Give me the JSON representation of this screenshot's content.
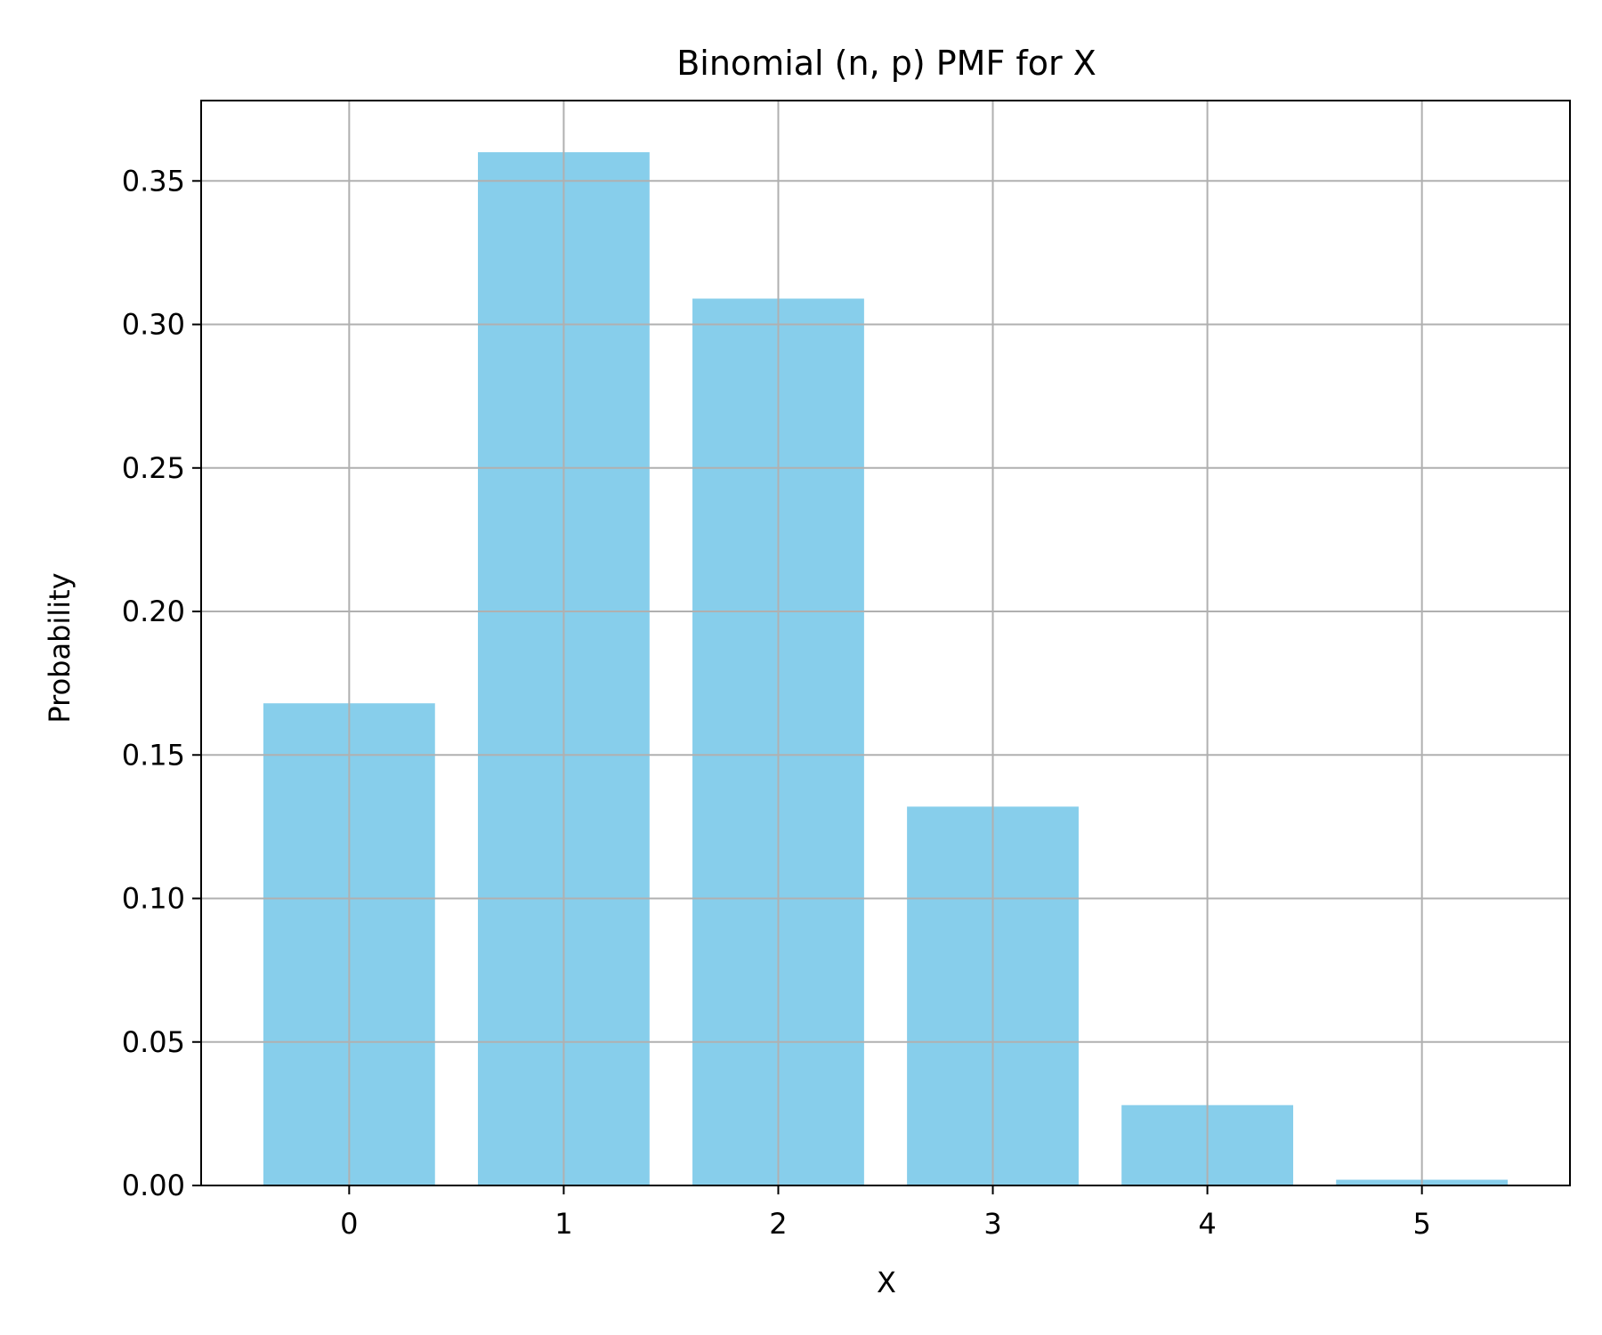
{
  "chart_data": {
    "type": "bar",
    "title": "Binomial (n, p) PMF for X",
    "xlabel": "X",
    "ylabel": "Probability",
    "categories": [
      "0",
      "1",
      "2",
      "3",
      "4",
      "5"
    ],
    "x": [
      0,
      1,
      2,
      3,
      4,
      5
    ],
    "values": [
      0.168,
      0.36,
      0.309,
      0.132,
      0.028,
      0.002
    ],
    "ylim": [
      0,
      0.378
    ],
    "xlim": [
      -0.69,
      5.69
    ],
    "yticks": [
      0.0,
      0.05,
      0.1,
      0.15,
      0.2,
      0.25,
      0.3,
      0.35
    ],
    "ytick_labels": [
      "0.00",
      "0.05",
      "0.10",
      "0.15",
      "0.20",
      "0.25",
      "0.30",
      "0.35"
    ],
    "xticks": [
      0,
      1,
      2,
      3,
      4,
      5
    ],
    "xtick_labels": [
      "0",
      "1",
      "2",
      "3",
      "4",
      "5"
    ],
    "grid": true,
    "bar_color": "#87CEEB",
    "grid_color": "#b0b0b0"
  }
}
